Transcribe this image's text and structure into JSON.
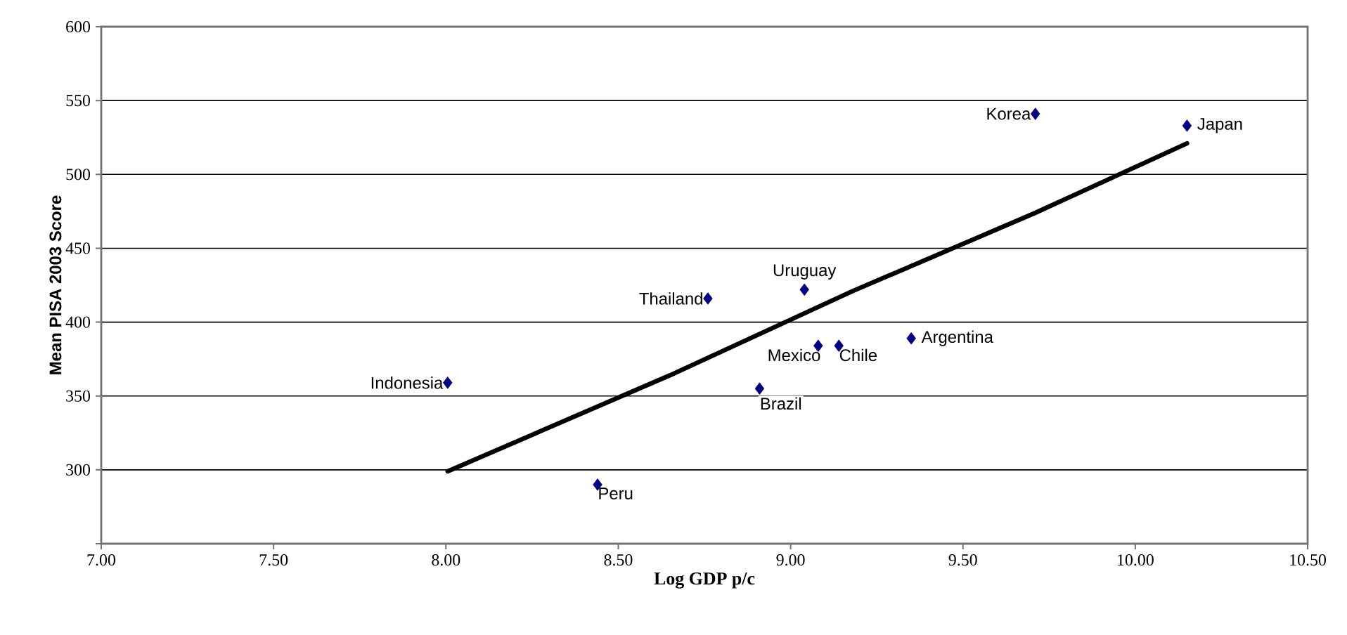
{
  "chart_data": {
    "type": "scatter",
    "xlabel": "Log GDP p/c",
    "ylabel": "Mean PISA 2003 Score",
    "xlim": [
      7,
      10.5
    ],
    "ylim": [
      250,
      600
    ],
    "xticks": [
      {
        "value": 7,
        "label": "7.00"
      },
      {
        "value": 7.5,
        "label": "7.50"
      },
      {
        "value": 8,
        "label": "8.00"
      },
      {
        "value": 8.5,
        "label": "8.50"
      },
      {
        "value": 9,
        "label": "9.00"
      },
      {
        "value": 9.5,
        "label": "9.50"
      },
      {
        "value": 10,
        "label": "10.00"
      },
      {
        "value": 10.5,
        "label": "10.50"
      }
    ],
    "yticks": [
      {
        "value": 250,
        "label": null
      },
      300,
      350,
      400,
      450,
      500,
      550,
      600
    ],
    "grid": "y",
    "marker": "diamond",
    "series": [
      {
        "color": "#000080",
        "x": [
          8.005,
          8.44,
          8.76,
          9.04,
          9.08,
          9.14,
          9.35,
          8.91,
          9.71,
          10.15
        ],
        "values": [
          359,
          290,
          416,
          422,
          384,
          384,
          389,
          355,
          541,
          533
        ]
      },
      {
        "type": "line",
        "color": "#000000",
        "marker": "none",
        "line_style": "solid",
        "x": [
          8.005,
          8.65,
          9.18,
          9.71,
          10.15
        ],
        "values": [
          299,
          364,
          421,
          474,
          521
        ]
      }
    ],
    "annotations": [
      {
        "text": "Indonesia",
        "x": 8.005,
        "y": 359
      },
      {
        "text": "Peru",
        "x": 8.44,
        "y": 290
      },
      {
        "text": "Thailand",
        "x": 8.76,
        "y": 416
      },
      {
        "text": "Uruguay",
        "x": 9.04,
        "y": 422
      },
      {
        "text": "Mexico",
        "x": 9.08,
        "y": 384
      },
      {
        "text": "Chile",
        "x": 9.14,
        "y": 384
      },
      {
        "text": "Argentina",
        "x": 9.35,
        "y": 389
      },
      {
        "text": "Brazil",
        "x": 8.91,
        "y": 355
      },
      {
        "text": "Korea",
        "x": 9.71,
        "y": 541
      },
      {
        "text": "Japan",
        "x": 10.15,
        "y": 533
      }
    ]
  }
}
